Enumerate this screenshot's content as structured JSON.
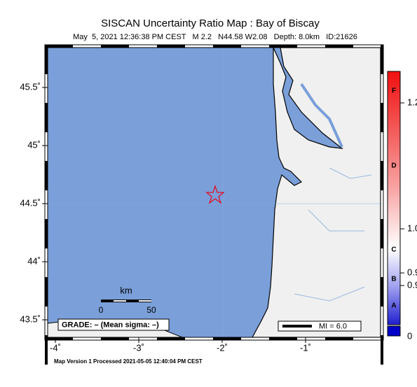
{
  "header": {
    "title": "SISCAN Uncertainty Ratio Map : Bay of Biscay",
    "subtitle": "May  5, 2021 12:36:38 PM CEST   M 2.2   N44.58 W2.08   Depth: 8.0km   ID:21626"
  },
  "map": {
    "lon_ticks": [
      {
        "value": -4,
        "label": "-4˚"
      },
      {
        "value": -3,
        "label": "-3˚"
      },
      {
        "value": -2,
        "label": "-2˚"
      },
      {
        "value": -1,
        "label": "-1˚"
      }
    ],
    "lat_ticks": [
      {
        "value": 45.5,
        "label": "45.5˚"
      },
      {
        "value": 45,
        "label": "45˚"
      },
      {
        "value": 44.5,
        "label": "44.5˚"
      },
      {
        "value": 44,
        "label": "44˚"
      },
      {
        "value": 43.5,
        "label": "43.5˚"
      }
    ],
    "scale_bar": {
      "unit": "km",
      "labels": [
        "0",
        "50"
      ]
    },
    "grade": "GRADE: – (Mean sigma: –)",
    "legend": "MI = 6.0"
  },
  "colorbar": {
    "tick_labels": [
      "1.2",
      "1.0",
      "0.9",
      "0.9"
    ],
    "grades": [
      "F",
      "D",
      "C",
      "B",
      "A"
    ],
    "bottom_label": "0"
  },
  "footer": "Map Version 1 Processed 2021-05-05 12:40:04 PM CEST"
}
